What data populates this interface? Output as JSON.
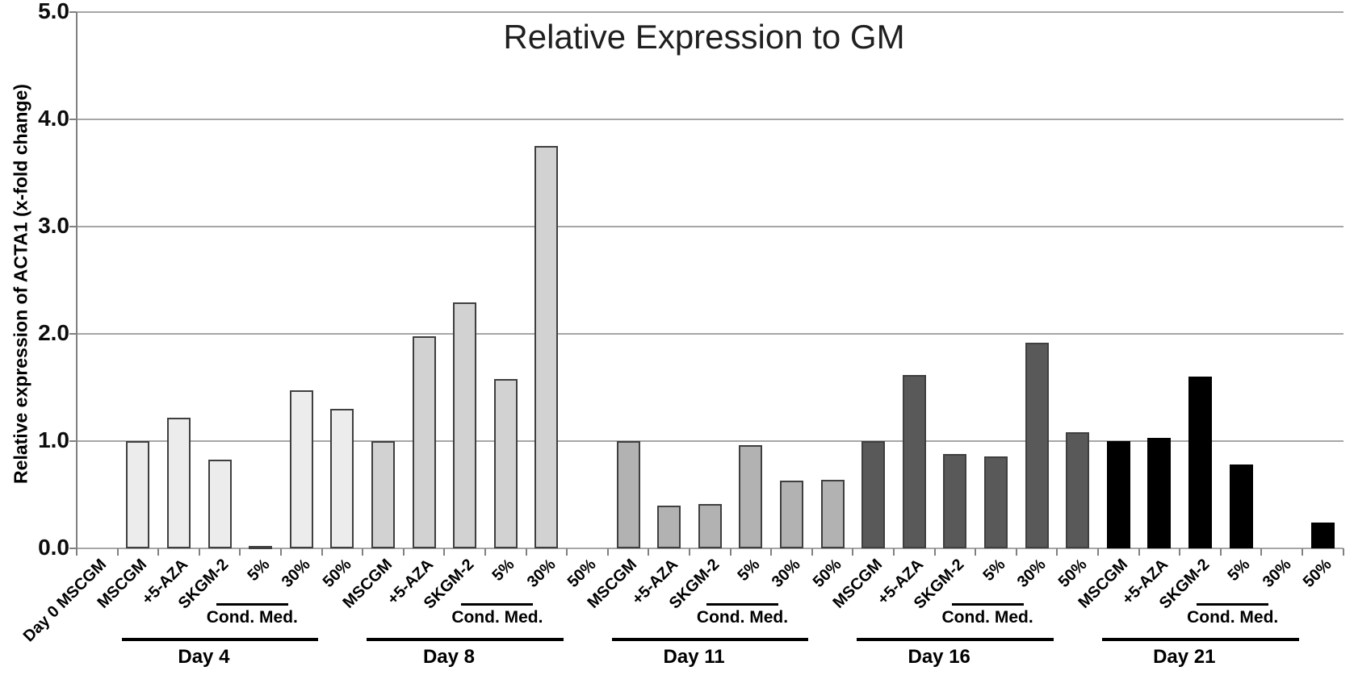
{
  "title": "Relative Expression to GM",
  "y_axis": {
    "label": "Relative expression of ACTA1  (x-fold change)",
    "tick_labels": [
      "5.0",
      "4.0",
      "3.0",
      "2.0",
      "1.0",
      "0.0"
    ]
  },
  "chart_data": {
    "type": "bar",
    "title": "Relative Expression to GM",
    "ylabel": "Relative expression of ACTA1 (x-fold change)",
    "ylim": [
      0,
      5
    ],
    "ytick_step": 1.0,
    "grid": true,
    "legend": "none",
    "standalone_category": {
      "label": "Day 0 MSCGM",
      "value": 0.0
    },
    "categories_per_group": [
      "MSCGM",
      "+5-AZA",
      "SKGM-2",
      "5%",
      "30%",
      "50%"
    ],
    "cond_med_label": "Cond. Med.",
    "cond_med_span": [
      "5%",
      "30%",
      "50%"
    ],
    "groups": [
      {
        "name": "Day 4",
        "color": "#ececec",
        "values": [
          1.0,
          1.22,
          0.83,
          0.02,
          1.47,
          1.3
        ]
      },
      {
        "name": "Day 8",
        "color": "#d2d2d2",
        "values": [
          1.0,
          1.98,
          2.29,
          1.58,
          3.75,
          0.0
        ]
      },
      {
        "name": "Day 11",
        "color": "#b2b2b2",
        "values": [
          1.0,
          0.4,
          0.41,
          0.96,
          0.63,
          0.64
        ]
      },
      {
        "name": "Day 16",
        "color": "#595959",
        "values": [
          1.0,
          1.62,
          0.88,
          0.86,
          1.92,
          1.08
        ]
      },
      {
        "name": "Day 21",
        "color": "#000000",
        "values": [
          1.0,
          1.03,
          1.6,
          0.78,
          0.0,
          0.24
        ]
      }
    ],
    "bar_border_color": "#3f3f3f",
    "gridline_color": "#a6a6a6",
    "axis_color": "#808080"
  }
}
